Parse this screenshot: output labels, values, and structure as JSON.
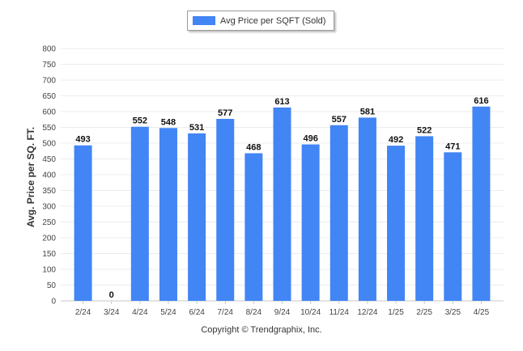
{
  "chart_data": {
    "type": "bar",
    "categories": [
      "2/24",
      "3/24",
      "4/24",
      "5/24",
      "6/24",
      "7/24",
      "8/24",
      "9/24",
      "10/24",
      "11/24",
      "12/24",
      "1/25",
      "2/25",
      "3/25",
      "4/25"
    ],
    "series": [
      {
        "name": "Avg Price per SQFT (Sold)",
        "values": [
          493,
          0,
          552,
          548,
          531,
          577,
          468,
          613,
          496,
          557,
          581,
          492,
          522,
          471,
          616
        ]
      }
    ],
    "ylabel": "Avg. Price per SQ. FT.",
    "xlabel": "",
    "ylim": [
      0,
      800
    ],
    "yticks": [
      0,
      50,
      100,
      150,
      200,
      250,
      300,
      350,
      400,
      450,
      500,
      550,
      600,
      650,
      700,
      750,
      800
    ],
    "grid": true,
    "legend_position": "top-center",
    "bar_color": "#4285f4"
  },
  "footer": {
    "copyright": "Copyright © Trendgraphix, Inc."
  }
}
